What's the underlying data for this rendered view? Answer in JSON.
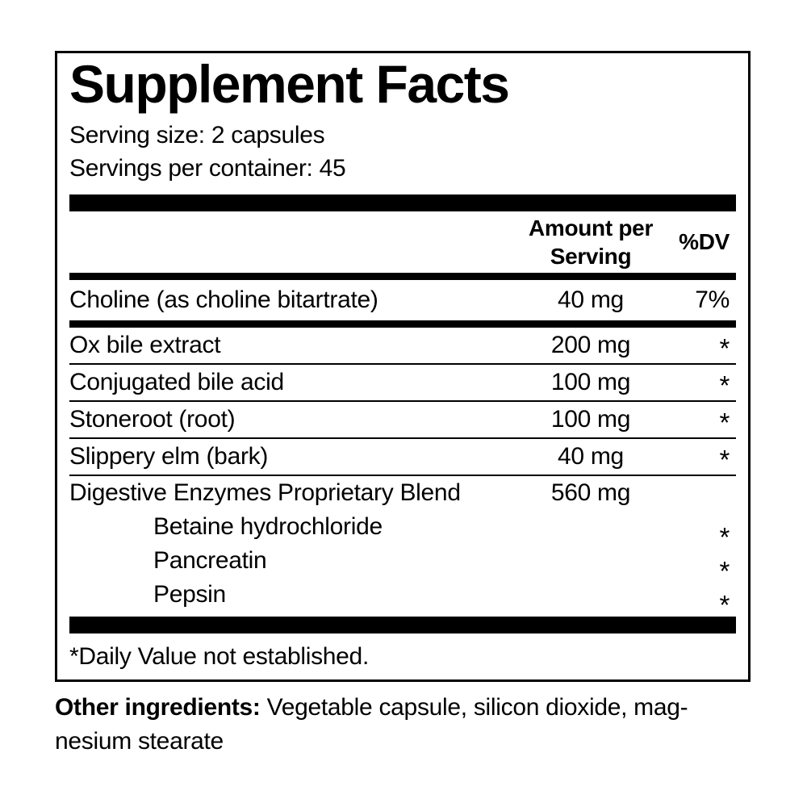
{
  "label": {
    "title": "Supplement Facts",
    "serving_size": "Serving size: 2 capsules",
    "servings_per_container": "Servings per container: 45",
    "header": {
      "amount": "Amount per\nServing",
      "dv": "%DV"
    },
    "rows": [
      {
        "name": "Choline (as choline bitartrate)",
        "amount": "40 mg",
        "dv": "7%"
      },
      {
        "name": "Ox bile extract",
        "amount": "200 mg",
        "dv": "*"
      },
      {
        "name": "Conjugated bile acid",
        "amount": "100 mg",
        "dv": "*"
      },
      {
        "name": "Stoneroot (root)",
        "amount": "100 mg",
        "dv": "*"
      },
      {
        "name": "Slippery elm (bark)",
        "amount": "40 mg",
        "dv": "*"
      },
      {
        "name": "Digestive Enzymes Proprietary Blend",
        "amount": "560 mg",
        "dv": ""
      },
      {
        "name": "Betaine hydrochloride",
        "amount": "",
        "dv": "*"
      },
      {
        "name": "Pancreatin",
        "amount": "",
        "dv": "*"
      },
      {
        "name": "Pepsin",
        "amount": "",
        "dv": "*"
      }
    ],
    "footnote": "*Daily Value not established.",
    "other_ingredients": {
      "label": "Other ingredients:",
      "line1": "Vegetable capsule, silicon dioxide, mag-",
      "line2": "nesium stearate"
    }
  },
  "colors": {
    "ink": "#000000",
    "background": "#ffffff"
  }
}
